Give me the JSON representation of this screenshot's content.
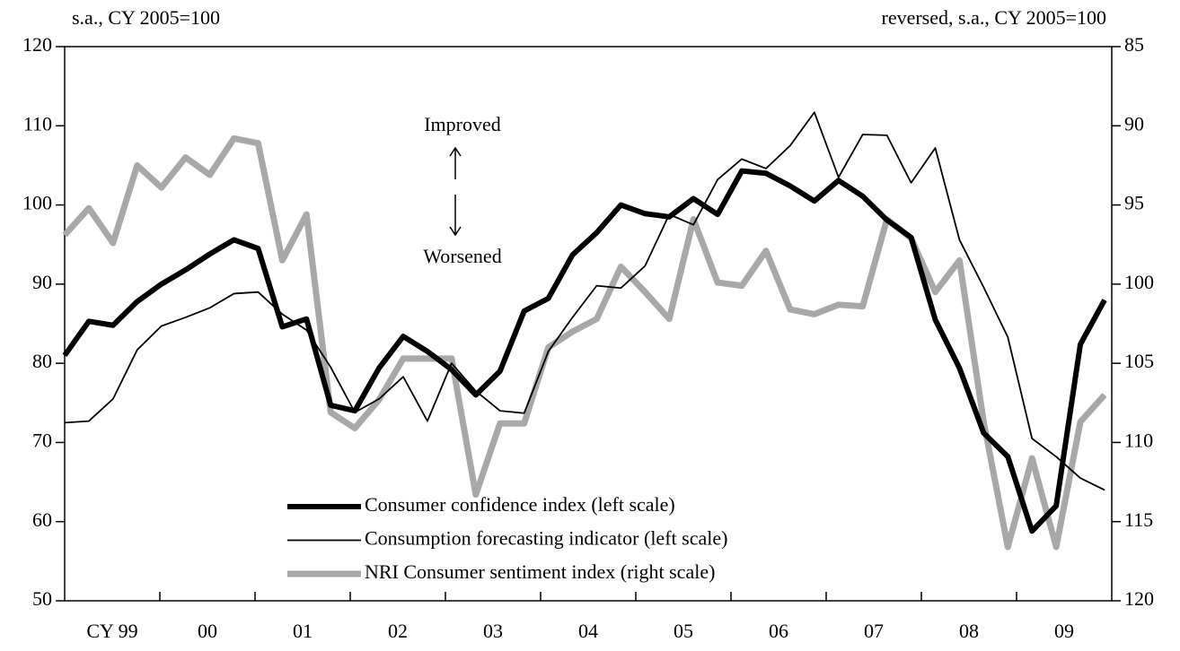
{
  "chart_data": {
    "type": "line",
    "y_label": "s.a., CY 2005=100",
    "y2_label": "reversed, s.a., CY 2005=100",
    "annotations": [
      "Improved",
      "Worsened"
    ],
    "categories": [
      null,
      "CY 99",
      null,
      null,
      null,
      "00",
      null,
      null,
      null,
      "01",
      null,
      null,
      null,
      "02",
      null,
      null,
      null,
      "03",
      null,
      null,
      null,
      "04",
      null,
      null,
      null,
      "05",
      null,
      null,
      null,
      "06",
      null,
      null,
      null,
      "07",
      null,
      null,
      null,
      "08",
      null,
      null,
      null,
      "09",
      null,
      null
    ],
    "series": [
      {
        "name": "Consumer confidence index (left scale)",
        "color": "#000000",
        "line_width": 6,
        "axis": "y",
        "values": [
          81,
          85.3,
          84.8,
          87.8,
          90,
          91.8,
          93.8,
          95.6,
          94.5,
          84.6,
          85.6,
          74.7,
          74,
          79.4,
          83.4,
          81.5,
          79.2,
          76,
          79,
          86.6,
          88.2,
          93.7,
          96.5,
          100,
          98.9,
          98.5,
          100.8,
          98.8,
          104.3,
          104,
          102.4,
          100.5,
          103.1,
          101.1,
          98.1,
          95.9,
          85.5,
          79.4,
          71.2,
          68.2,
          58.8,
          62,
          82.4,
          88
        ]
      },
      {
        "name": "Consumption forecasting indicator (left scale)",
        "color": "#000000",
        "line_width": 1.8,
        "axis": "y",
        "values": [
          72.5,
          72.7,
          75.5,
          81.7,
          84.7,
          85.8,
          87,
          88.8,
          89,
          86.2,
          84.2,
          79.5,
          73.8,
          75.5,
          78.3,
          72.7,
          80,
          76.5,
          74,
          73.7,
          81.5,
          85.8,
          89.8,
          89.5,
          92.3,
          98.8,
          97.5,
          103.2,
          105.8,
          104.6,
          107.5,
          111.7,
          103.5,
          108.9,
          108.8,
          102.8,
          107.2,
          95.6,
          89.6,
          83.3,
          70.5,
          68.2,
          65.5,
          64
        ]
      },
      {
        "name": "NRI Consumer sentiment index (right scale)",
        "color": "#a8a8a8",
        "line_width": 7,
        "axis": "y2",
        "values": [
          96.9,
          95.2,
          97.4,
          92.5,
          93.9,
          92,
          93.1,
          90.8,
          91.1,
          98.5,
          95.6,
          108.1,
          109.1,
          107.3,
          104.7,
          104.7,
          104.7,
          113.3,
          108.8,
          108.8,
          104,
          103,
          102.2,
          98.9,
          100.5,
          102.2,
          95.9,
          99.9,
          100.1,
          97.9,
          101.6,
          101.9,
          101.3,
          101.4,
          95.9,
          97.1,
          100.5,
          98.5,
          108.7,
          116.6,
          111,
          116.6,
          108.7,
          107
        ]
      }
    ],
    "ylim": [
      50,
      120
    ],
    "yticks": [
      50,
      60,
      70,
      80,
      90,
      100,
      110,
      120
    ],
    "y2lim": [
      120,
      85
    ],
    "y2ticks": [
      85,
      90,
      95,
      100,
      105,
      110,
      115,
      120
    ],
    "y2_reversed": true,
    "grid": false
  }
}
